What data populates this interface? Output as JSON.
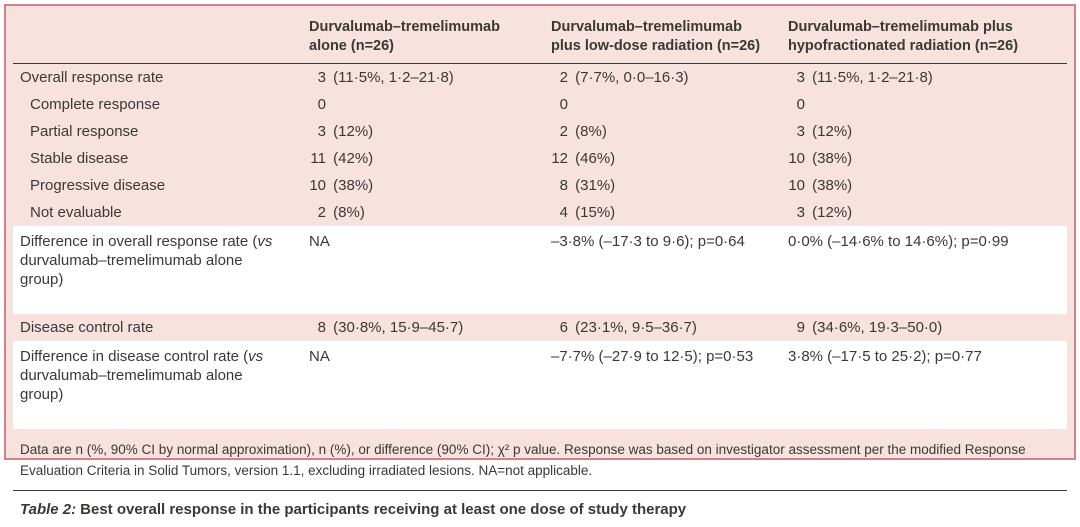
{
  "table": {
    "columns": [
      "",
      "Durvalumab–tremelimumab alone (n=26)",
      "Durvalumab–tremelimumab plus low-dose radiation (n=26)",
      "Durvalumab–tremelimumab plus hypofractionated radiation (n=26)"
    ],
    "rows": [
      {
        "label": "Overall response rate",
        "cells": [
          "3 (11·5%, 1·2–21·8)",
          "2 (7·7%, 0·0–16·3)",
          "3 (11·5%, 1·2–21·8)"
        ]
      },
      {
        "label": "Complete response",
        "cells": [
          "0",
          "0",
          "0"
        ]
      },
      {
        "label": "Partial response",
        "cells": [
          "3 (12%)",
          "2 (8%)",
          "3 (12%)"
        ]
      },
      {
        "label": "Stable disease",
        "cells": [
          "11 (42%)",
          "12 (46%)",
          "10 (38%)"
        ]
      },
      {
        "label": "Progressive disease",
        "cells": [
          "10 (38%)",
          "8 (31%)",
          "10 (38%)"
        ]
      },
      {
        "label": "Not evaluable",
        "cells": [
          "2 (8%)",
          "4 (15%)",
          "3 (12%)"
        ]
      },
      {
        "label_pre": "Difference in overall response rate (",
        "label_italic": "vs",
        "label_post": " durvalumab–tremelimumab alone group)",
        "cells": [
          "NA",
          "–3·8% (–17·3 to 9·6); p=0·64",
          "0·0% (–14·6% to 14·6%); p=0·99"
        ]
      },
      {
        "label": "Disease control rate",
        "cells": [
          "8 (30·8%, 15·9–45·7)",
          "6 (23·1%, 9·5–36·7)",
          "9 (34·6%, 19·3–50·0)"
        ]
      },
      {
        "label_pre": "Difference in disease control rate (",
        "label_italic": "vs",
        "label_post": " durvalumab–tremelimumab alone group)",
        "cells": [
          "NA",
          "–7·7% (–27·9 to 12·5); p=0·53",
          "3·8% (–17·5 to 25·2); p=0·77"
        ]
      }
    ],
    "footnote": "Data are n (%, 90% CI by normal approximation), n (%), or difference (90% CI); χ² p value. Response was based on investigator assessment per the modified Response Evaluation Criteria in Solid Tumors, version 1.1, excluding irradiated lesions. NA=not applicable.",
    "caption_label": "Table 2:",
    "caption_text": "Best overall response in the participants receiving at least one dose of study therapy"
  },
  "colors": {
    "panel_bg": "#f7e2de",
    "panel_border": "#d2808e",
    "highlight_row": "#ffffff",
    "text": "#3b3836",
    "rule": "#3c3836"
  }
}
